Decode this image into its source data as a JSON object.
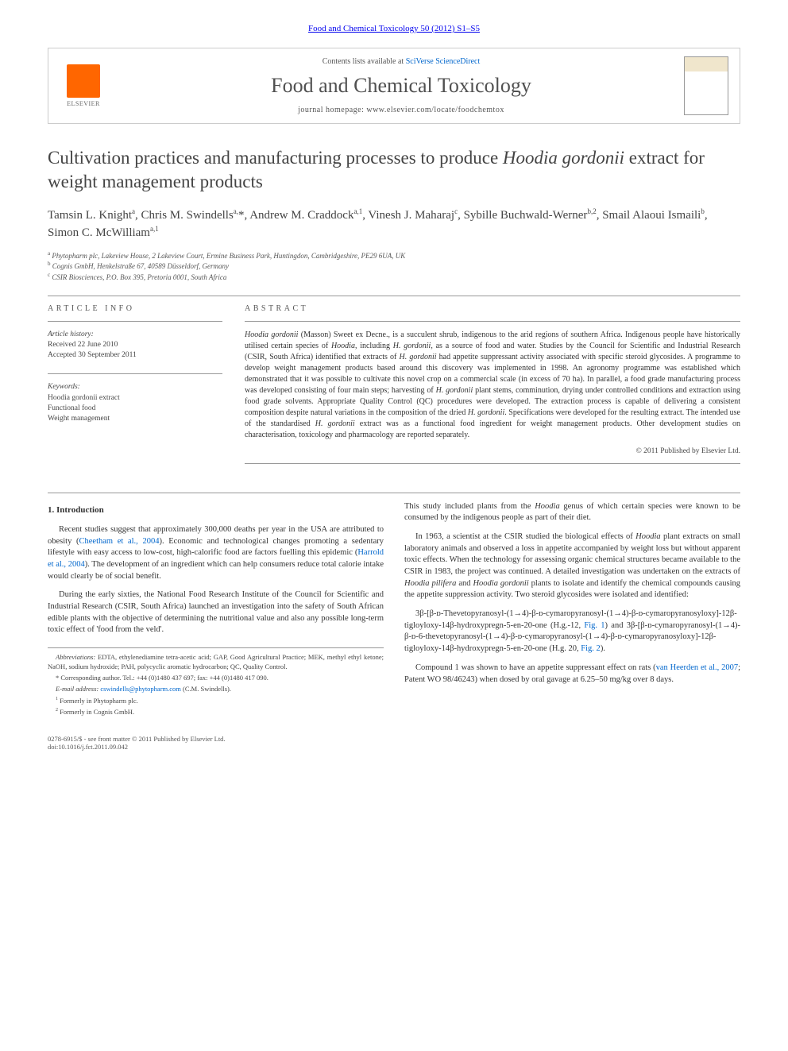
{
  "header": {
    "citation": "Food and Chemical Toxicology 50 (2012) S1–S5",
    "contents_prefix": "Contents lists available at ",
    "contents_link": "SciVerse ScienceDirect",
    "journal_name": "Food and Chemical Toxicology",
    "homepage_prefix": "journal homepage: ",
    "homepage_url": "www.elsevier.com/locate/foodchemtox",
    "elsevier_label": "ELSEVIER"
  },
  "title_parts": {
    "pre": "Cultivation practices and manufacturing processes to produce ",
    "italic": "Hoodia gordonii",
    "post": " extract for weight management products"
  },
  "authors_html": "Tamsin L. Knight<sup>a</sup>, Chris M. Swindells<sup>a,</sup>*, Andrew M. Craddock<sup>a,1</sup>, Vinesh J. Maharaj<sup>c</sup>, Sybille Buchwald-Werner<sup>b,2</sup>, Smail Alaoui Ismaili<sup>b</sup>, Simon C. McWilliam<sup>a,1</sup>",
  "affiliations": [
    "a Phytopharm plc, Lakeview House, 2 Lakeview Court, Ermine Business Park, Huntingdon, Cambridgeshire, PE29 6UA, UK",
    "b Cognis GmbH, Henkelstraße 67, 40589 Düsseldorf, Germany",
    "c CSIR Biosciences, P.O. Box 395, Pretoria 0001, South Africa"
  ],
  "article_info": {
    "heading": "ARTICLE INFO",
    "history_label": "Article history:",
    "received": "Received 22 June 2010",
    "accepted": "Accepted 30 September 2011",
    "keywords_label": "Keywords:",
    "keywords": [
      "Hoodia gordonii extract",
      "Functional food",
      "Weight management"
    ]
  },
  "abstract": {
    "heading": "ABSTRACT",
    "text_html": "<span class=\"italic\">Hoodia gordonii</span> (Masson) Sweet ex Decne., is a succulent shrub, indigenous to the arid regions of southern Africa. Indigenous people have historically utilised certain species of <span class=\"italic\">Hoodia</span>, including <span class=\"italic\">H. gordonii</span>, as a source of food and water. Studies by the Council for Scientific and Industrial Research (CSIR, South Africa) identified that extracts of <span class=\"italic\">H. gordonii</span> had appetite suppressant activity associated with specific steroid glycosides. A programme to develop weight management products based around this discovery was implemented in 1998. An agronomy programme was established which demonstrated that it was possible to cultivate this novel crop on a commercial scale (in excess of 70 ha). In parallel, a food grade manufacturing process was developed consisting of four main steps; harvesting of <span class=\"italic\">H. gordonii</span> plant stems, comminution, drying under controlled conditions and extraction using food grade solvents. Appropriate Quality Control (QC) procedures were developed. The extraction process is capable of delivering a consistent composition despite natural variations in the composition of the dried <span class=\"italic\">H. gordonii</span>. Specifications were developed for the resulting extract. The intended use of the standardised <span class=\"italic\">H. gordonii</span> extract was as a functional food ingredient for weight management products. Other development studies on characterisation, toxicology and pharmacology are reported separately.",
    "copyright": "© 2011 Published by Elsevier Ltd."
  },
  "body": {
    "section_heading": "1. Introduction",
    "p1_html": "Recent studies suggest that approximately 300,000 deaths per year in the USA are attributed to obesity (<a href=\"#\" data-name=\"ref-link\" data-interactable=\"true\">Cheetham et al., 2004</a>). Economic and technological changes promoting a sedentary lifestyle with easy access to low-cost, high-calorific food are factors fuelling this epidemic (<a href=\"#\" data-name=\"ref-link\" data-interactable=\"true\">Harrold et al., 2004</a>). The development of an ingredient which can help consumers reduce total calorie intake would clearly be of social benefit.",
    "p2_html": "During the early sixties, the National Food Research Institute of the Council for Scientific and Industrial Research (CSIR, South Africa) launched an investigation into the safety of South African edible plants with the objective of determining the nutritional value and also any possible long-term toxic effect of 'food from the veld'.",
    "p3_html": "This study included plants from the <span class=\"italic\">Hoodia</span> genus of which certain species were known to be consumed by the indigenous people as part of their diet.",
    "p4_html": "In 1963, a scientist at the CSIR studied the biological effects of <span class=\"italic\">Hoodia</span> plant extracts on small laboratory animals and observed a loss in appetite accompanied by weight loss but without apparent toxic effects. When the technology for assessing organic chemical structures became available to the CSIR in 1983, the project was continued. A detailed investigation was undertaken on the extracts of <span class=\"italic\">Hoodia pilifera</span> and <span class=\"italic\">Hoodia gordonii</span> plants to isolate and identify the chemical compounds causing the appetite suppression activity. Two steroid glycosides were isolated and identified:",
    "p5_html": "3β-[β-ᴅ-Thevetopyranosyl-(1→4)-β-ᴅ-cymaropyranosyl-(1→4)-β-ᴅ-cymaropyranosyloxy]-12β-tigloyloxy-14β-hydroxypregn-5-en-20-one (H.g.-12, <a href=\"#\" data-name=\"fig-link\" data-interactable=\"true\">Fig. 1</a>) and 3β-[β-ᴅ-cymaropyranosyl-(1→4)-β-ᴅ-6-thevetopyranosyl-(1→4)-β-ᴅ-cymaropyranosyl-(1→4)-β-ᴅ-cymaropyranosyloxy]-12β-tigloyloxy-14β-hydroxypregn-5-en-20-one (H.g. 20, <a href=\"#\" data-name=\"fig-link\" data-interactable=\"true\">Fig. 2</a>).",
    "p6_html": "Compound 1 was shown to have an appetite suppressant effect on rats (<a href=\"#\" data-name=\"ref-link\" data-interactable=\"true\">van Heerden et al., 2007</a>; Patent WO 98/46243) when dosed by oral gavage at 6.25–50 mg/kg over 8 days."
  },
  "footnotes": {
    "abbrev_label": "Abbreviations:",
    "abbrev_text": " EDTA, ethylenediamine tetra-acetic acid; GAP, Good Agricultural Practice; MEK, methyl ethyl ketone; NaOH, sodium hydroxide; PAH, polycyclic aromatic hydrocarbon; QC, Quality Control.",
    "corr_text": "* Corresponding author. Tel.: +44 (0)1480 437 697; fax: +44 (0)1480 417 090.",
    "email_label": "E-mail address:",
    "email": "cswindells@phytopharm.com",
    "email_suffix": " (C.M. Swindells).",
    "fn1": "1  Formerly in Phytopharm plc.",
    "fn2": "2  Formerly in Cognis GmbH."
  },
  "footer": {
    "line1": "0278-6915/$ - see front matter © 2011 Published by Elsevier Ltd.",
    "line2": "doi:10.1016/j.fct.2011.09.042"
  },
  "colors": {
    "link": "#0066cc",
    "text": "#333333",
    "rule": "#999999",
    "elsevier_orange": "#ff6600"
  }
}
